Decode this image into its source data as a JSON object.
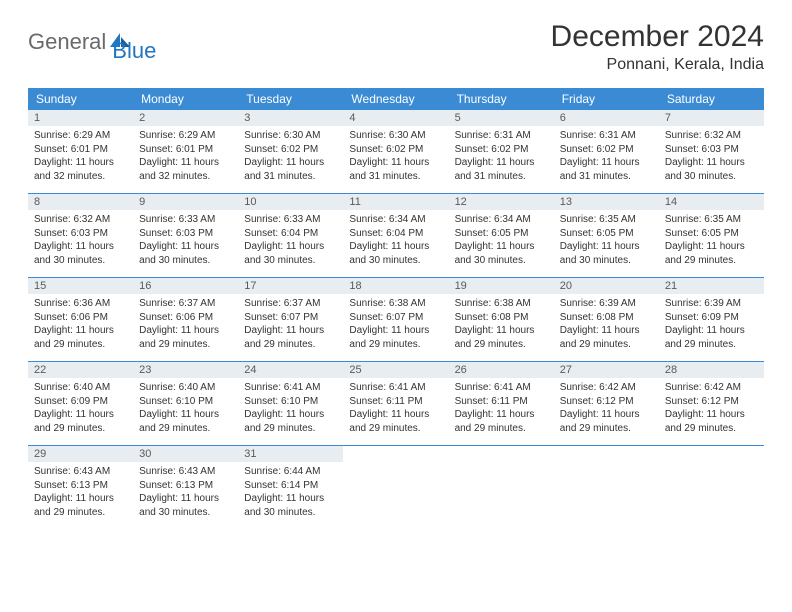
{
  "logo": {
    "text1": "General",
    "text2": "Blue"
  },
  "header": {
    "title": "December 2024",
    "location": "Ponnani, Kerala, India"
  },
  "columns": [
    "Sunday",
    "Monday",
    "Tuesday",
    "Wednesday",
    "Thursday",
    "Friday",
    "Saturday"
  ],
  "colors": {
    "header_bg": "#3b8bd4",
    "header_fg": "#ffffff",
    "daynum_bg": "#e8edf1",
    "row_border": "#3b8bd4",
    "logo_gray": "#6a6a6a",
    "logo_blue": "#2176c1",
    "text": "#333333",
    "body_bg": "#ffffff"
  },
  "fonts": {
    "title_size": 30,
    "location_size": 16,
    "th_size": 12,
    "daynum_size": 11,
    "body_size": 10,
    "logo_size": 22
  },
  "days": [
    {
      "n": 1,
      "sunrise": "6:29 AM",
      "sunset": "6:01 PM",
      "dl_h": 11,
      "dl_m": 32
    },
    {
      "n": 2,
      "sunrise": "6:29 AM",
      "sunset": "6:01 PM",
      "dl_h": 11,
      "dl_m": 32
    },
    {
      "n": 3,
      "sunrise": "6:30 AM",
      "sunset": "6:02 PM",
      "dl_h": 11,
      "dl_m": 31
    },
    {
      "n": 4,
      "sunrise": "6:30 AM",
      "sunset": "6:02 PM",
      "dl_h": 11,
      "dl_m": 31
    },
    {
      "n": 5,
      "sunrise": "6:31 AM",
      "sunset": "6:02 PM",
      "dl_h": 11,
      "dl_m": 31
    },
    {
      "n": 6,
      "sunrise": "6:31 AM",
      "sunset": "6:02 PM",
      "dl_h": 11,
      "dl_m": 31
    },
    {
      "n": 7,
      "sunrise": "6:32 AM",
      "sunset": "6:03 PM",
      "dl_h": 11,
      "dl_m": 30
    },
    {
      "n": 8,
      "sunrise": "6:32 AM",
      "sunset": "6:03 PM",
      "dl_h": 11,
      "dl_m": 30
    },
    {
      "n": 9,
      "sunrise": "6:33 AM",
      "sunset": "6:03 PM",
      "dl_h": 11,
      "dl_m": 30
    },
    {
      "n": 10,
      "sunrise": "6:33 AM",
      "sunset": "6:04 PM",
      "dl_h": 11,
      "dl_m": 30
    },
    {
      "n": 11,
      "sunrise": "6:34 AM",
      "sunset": "6:04 PM",
      "dl_h": 11,
      "dl_m": 30
    },
    {
      "n": 12,
      "sunrise": "6:34 AM",
      "sunset": "6:05 PM",
      "dl_h": 11,
      "dl_m": 30
    },
    {
      "n": 13,
      "sunrise": "6:35 AM",
      "sunset": "6:05 PM",
      "dl_h": 11,
      "dl_m": 30
    },
    {
      "n": 14,
      "sunrise": "6:35 AM",
      "sunset": "6:05 PM",
      "dl_h": 11,
      "dl_m": 29
    },
    {
      "n": 15,
      "sunrise": "6:36 AM",
      "sunset": "6:06 PM",
      "dl_h": 11,
      "dl_m": 29
    },
    {
      "n": 16,
      "sunrise": "6:37 AM",
      "sunset": "6:06 PM",
      "dl_h": 11,
      "dl_m": 29
    },
    {
      "n": 17,
      "sunrise": "6:37 AM",
      "sunset": "6:07 PM",
      "dl_h": 11,
      "dl_m": 29
    },
    {
      "n": 18,
      "sunrise": "6:38 AM",
      "sunset": "6:07 PM",
      "dl_h": 11,
      "dl_m": 29
    },
    {
      "n": 19,
      "sunrise": "6:38 AM",
      "sunset": "6:08 PM",
      "dl_h": 11,
      "dl_m": 29
    },
    {
      "n": 20,
      "sunrise": "6:39 AM",
      "sunset": "6:08 PM",
      "dl_h": 11,
      "dl_m": 29
    },
    {
      "n": 21,
      "sunrise": "6:39 AM",
      "sunset": "6:09 PM",
      "dl_h": 11,
      "dl_m": 29
    },
    {
      "n": 22,
      "sunrise": "6:40 AM",
      "sunset": "6:09 PM",
      "dl_h": 11,
      "dl_m": 29
    },
    {
      "n": 23,
      "sunrise": "6:40 AM",
      "sunset": "6:10 PM",
      "dl_h": 11,
      "dl_m": 29
    },
    {
      "n": 24,
      "sunrise": "6:41 AM",
      "sunset": "6:10 PM",
      "dl_h": 11,
      "dl_m": 29
    },
    {
      "n": 25,
      "sunrise": "6:41 AM",
      "sunset": "6:11 PM",
      "dl_h": 11,
      "dl_m": 29
    },
    {
      "n": 26,
      "sunrise": "6:41 AM",
      "sunset": "6:11 PM",
      "dl_h": 11,
      "dl_m": 29
    },
    {
      "n": 27,
      "sunrise": "6:42 AM",
      "sunset": "6:12 PM",
      "dl_h": 11,
      "dl_m": 29
    },
    {
      "n": 28,
      "sunrise": "6:42 AM",
      "sunset": "6:12 PM",
      "dl_h": 11,
      "dl_m": 29
    },
    {
      "n": 29,
      "sunrise": "6:43 AM",
      "sunset": "6:13 PM",
      "dl_h": 11,
      "dl_m": 29
    },
    {
      "n": 30,
      "sunrise": "6:43 AM",
      "sunset": "6:13 PM",
      "dl_h": 11,
      "dl_m": 30
    },
    {
      "n": 31,
      "sunrise": "6:44 AM",
      "sunset": "6:14 PM",
      "dl_h": 11,
      "dl_m": 30
    }
  ]
}
